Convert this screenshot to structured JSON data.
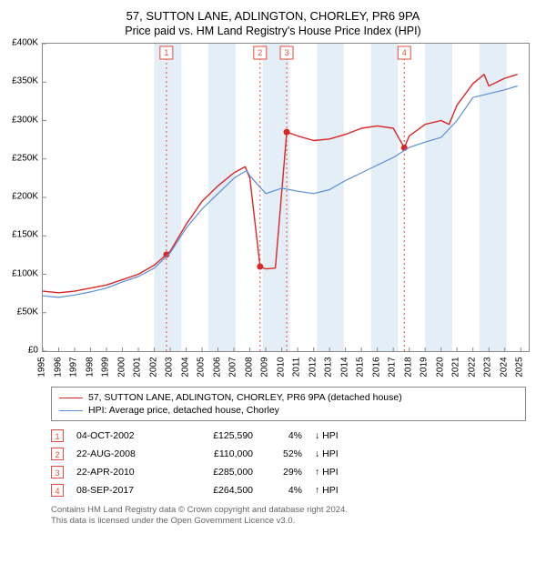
{
  "title_main": "57, SUTTON LANE, ADLINGTON, CHORLEY, PR6 9PA",
  "title_sub": "Price paid vs. HM Land Registry's House Price Index (HPI)",
  "chart": {
    "type": "line",
    "background_color": "#ffffff",
    "border_color": "#888888",
    "xlim": [
      1995,
      2025.5
    ],
    "ylim": [
      0,
      400000
    ],
    "ytick_step": 50000,
    "yticks": [
      {
        "v": 0,
        "label": "£0"
      },
      {
        "v": 50000,
        "label": "£50K"
      },
      {
        "v": 100000,
        "label": "£100K"
      },
      {
        "v": 150000,
        "label": "£150K"
      },
      {
        "v": 200000,
        "label": "£200K"
      },
      {
        "v": 250000,
        "label": "£250K"
      },
      {
        "v": 300000,
        "label": "£300K"
      },
      {
        "v": 350000,
        "label": "£350K"
      },
      {
        "v": 400000,
        "label": "£400K"
      }
    ],
    "xticks": [
      1995,
      1996,
      1997,
      1998,
      1999,
      2000,
      2001,
      2002,
      2003,
      2004,
      2005,
      2006,
      2007,
      2008,
      2009,
      2010,
      2011,
      2012,
      2013,
      2014,
      2015,
      2016,
      2017,
      2018,
      2019,
      2020,
      2021,
      2022,
      2023,
      2024,
      2025
    ],
    "label_fontsize": 10,
    "shaded_bands_color": "#e4eef7",
    "shaded_bands": [
      [
        2002.0,
        2003.7
      ],
      [
        2005.4,
        2007.1
      ],
      [
        2008.8,
        2010.5
      ],
      [
        2012.2,
        2013.9
      ],
      [
        2015.6,
        2017.3
      ],
      [
        2019.0,
        2020.7
      ],
      [
        2022.4,
        2024.1
      ]
    ],
    "vertical_marker_color": "#e74c3c",
    "vertical_markers": [
      {
        "label": "1",
        "x": 2002.76
      },
      {
        "label": "2",
        "x": 2008.64
      },
      {
        "label": "3",
        "x": 2010.31
      },
      {
        "label": "4",
        "x": 2017.69
      }
    ],
    "series": [
      {
        "name": "57, SUTTON LANE, ADLINGTON, CHORLEY, PR6 9PA (detached house)",
        "color": "#d92626",
        "width": 1.4,
        "points": [
          [
            1995,
            78000
          ],
          [
            1996,
            76000
          ],
          [
            1997,
            78000
          ],
          [
            1998,
            82000
          ],
          [
            1999,
            86000
          ],
          [
            2000,
            93000
          ],
          [
            2001,
            100000
          ],
          [
            2002,
            112000
          ],
          [
            2002.76,
            125590
          ],
          [
            2003,
            130000
          ],
          [
            2004,
            165000
          ],
          [
            2005,
            195000
          ],
          [
            2006,
            215000
          ],
          [
            2007,
            232000
          ],
          [
            2007.7,
            240000
          ],
          [
            2008,
            225000
          ],
          [
            2008.64,
            110000
          ],
          [
            2009,
            107000
          ],
          [
            2009.6,
            108000
          ],
          [
            2010.31,
            285000
          ],
          [
            2011,
            280000
          ],
          [
            2012,
            274000
          ],
          [
            2013,
            276000
          ],
          [
            2014,
            282000
          ],
          [
            2015,
            290000
          ],
          [
            2016,
            293000
          ],
          [
            2017,
            290000
          ],
          [
            2017.69,
            264500
          ],
          [
            2018,
            280000
          ],
          [
            2019,
            295000
          ],
          [
            2020,
            300000
          ],
          [
            2020.5,
            295000
          ],
          [
            2021,
            320000
          ],
          [
            2022,
            348000
          ],
          [
            2022.7,
            360000
          ],
          [
            2023,
            345000
          ],
          [
            2024,
            355000
          ],
          [
            2024.8,
            360000
          ]
        ],
        "dots": [
          [
            2002.76,
            125590
          ],
          [
            2008.64,
            110000
          ],
          [
            2010.31,
            285000
          ],
          [
            2017.69,
            264500
          ]
        ]
      },
      {
        "name": "HPI: Average price, detached house, Chorley",
        "color": "#5a8fd6",
        "width": 1.2,
        "points": [
          [
            1995,
            72000
          ],
          [
            1996,
            70000
          ],
          [
            1997,
            73000
          ],
          [
            1998,
            77000
          ],
          [
            1999,
            82000
          ],
          [
            2000,
            90000
          ],
          [
            2001,
            97000
          ],
          [
            2002,
            108000
          ],
          [
            2003,
            128000
          ],
          [
            2004,
            160000
          ],
          [
            2005,
            185000
          ],
          [
            2006,
            205000
          ],
          [
            2007,
            225000
          ],
          [
            2007.8,
            235000
          ],
          [
            2008,
            228000
          ],
          [
            2009,
            205000
          ],
          [
            2010,
            212000
          ],
          [
            2011,
            208000
          ],
          [
            2012,
            205000
          ],
          [
            2013,
            210000
          ],
          [
            2014,
            222000
          ],
          [
            2015,
            232000
          ],
          [
            2016,
            242000
          ],
          [
            2017,
            252000
          ],
          [
            2018,
            265000
          ],
          [
            2019,
            272000
          ],
          [
            2020,
            278000
          ],
          [
            2021,
            300000
          ],
          [
            2022,
            330000
          ],
          [
            2023,
            335000
          ],
          [
            2024,
            340000
          ],
          [
            2024.8,
            345000
          ]
        ]
      }
    ]
  },
  "legend": {
    "items": [
      {
        "color": "#d92626",
        "label": "57, SUTTON LANE, ADLINGTON, CHORLEY, PR6 9PA (detached house)"
      },
      {
        "color": "#5a8fd6",
        "label": "HPI: Average price, detached house, Chorley"
      }
    ]
  },
  "transactions": {
    "marker_color": "#e74c3c",
    "rows": [
      {
        "n": "1",
        "date": "04-OCT-2002",
        "price": "£125,590",
        "pct": "4%",
        "dir": "↓",
        "suffix": "HPI"
      },
      {
        "n": "2",
        "date": "22-AUG-2008",
        "price": "£110,000",
        "pct": "52%",
        "dir": "↓",
        "suffix": "HPI"
      },
      {
        "n": "3",
        "date": "22-APR-2010",
        "price": "£285,000",
        "pct": "29%",
        "dir": "↑",
        "suffix": "HPI"
      },
      {
        "n": "4",
        "date": "08-SEP-2017",
        "price": "£264,500",
        "pct": "4%",
        "dir": "↑",
        "suffix": "HPI"
      }
    ]
  },
  "footer": {
    "line1": "Contains HM Land Registry data © Crown copyright and database right 2024.",
    "line2": "This data is licensed under the Open Government Licence v3.0."
  }
}
